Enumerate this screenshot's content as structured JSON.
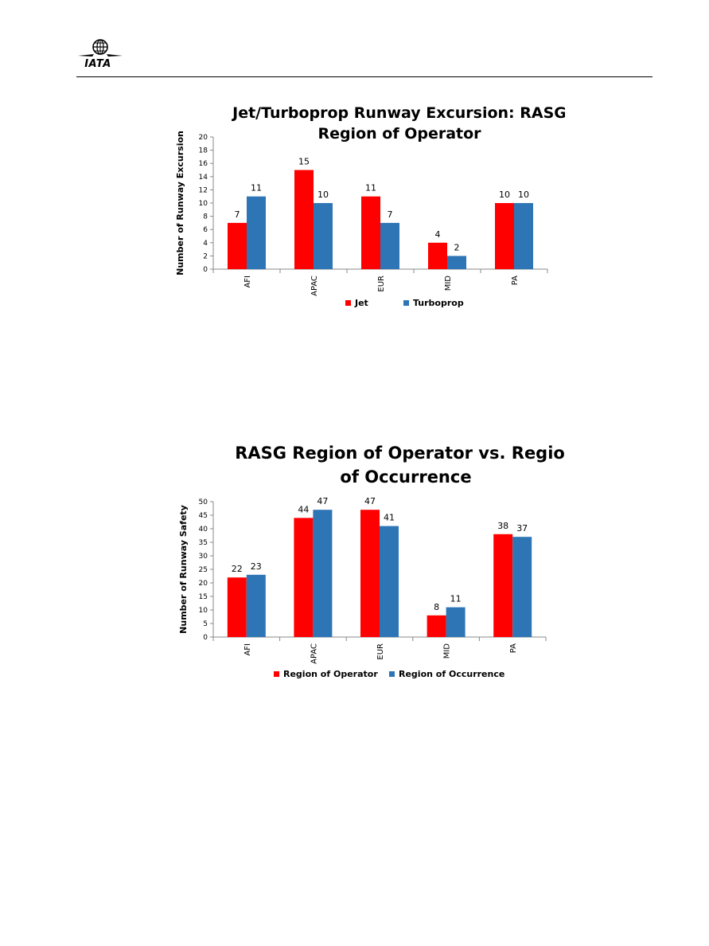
{
  "header": {
    "logo_text": "IATA"
  },
  "colors": {
    "series1": "#ff0000",
    "series2": "#2e75b6",
    "axis": "#888888"
  },
  "chart_data": [
    {
      "type": "bar",
      "title_lines": [
        "Jet/Turboprop Runway Excursion: RASG",
        "Region of Operator"
      ],
      "xlabel": "",
      "ylabel": "Number of Runway Excursion",
      "categories": [
        "AFI",
        "APAC",
        "EUR",
        "MID",
        "PA"
      ],
      "ylim": [
        0,
        20
      ],
      "ytick_step": 2,
      "grid": false,
      "legend_position": "bottom",
      "series": [
        {
          "name": "Jet",
          "values": [
            7,
            15,
            11,
            4,
            10
          ]
        },
        {
          "name": "Turboprop",
          "values": [
            11,
            10,
            7,
            2,
            10
          ]
        }
      ]
    },
    {
      "type": "bar",
      "title_lines": [
        "RASG Region of Operator vs. Region",
        "of Occurrence"
      ],
      "xlabel": "",
      "ylabel": "Number of Runway Safety",
      "categories": [
        "AFI",
        "APAC",
        "EUR",
        "MID",
        "PA"
      ],
      "ylim": [
        0,
        50
      ],
      "ytick_step": 5,
      "grid": false,
      "legend_position": "bottom",
      "series": [
        {
          "name": "Region of Operator",
          "values": [
            22,
            44,
            47,
            8,
            38
          ]
        },
        {
          "name": "Region of Occurrence",
          "values": [
            23,
            47,
            41,
            11,
            37
          ]
        }
      ]
    }
  ]
}
